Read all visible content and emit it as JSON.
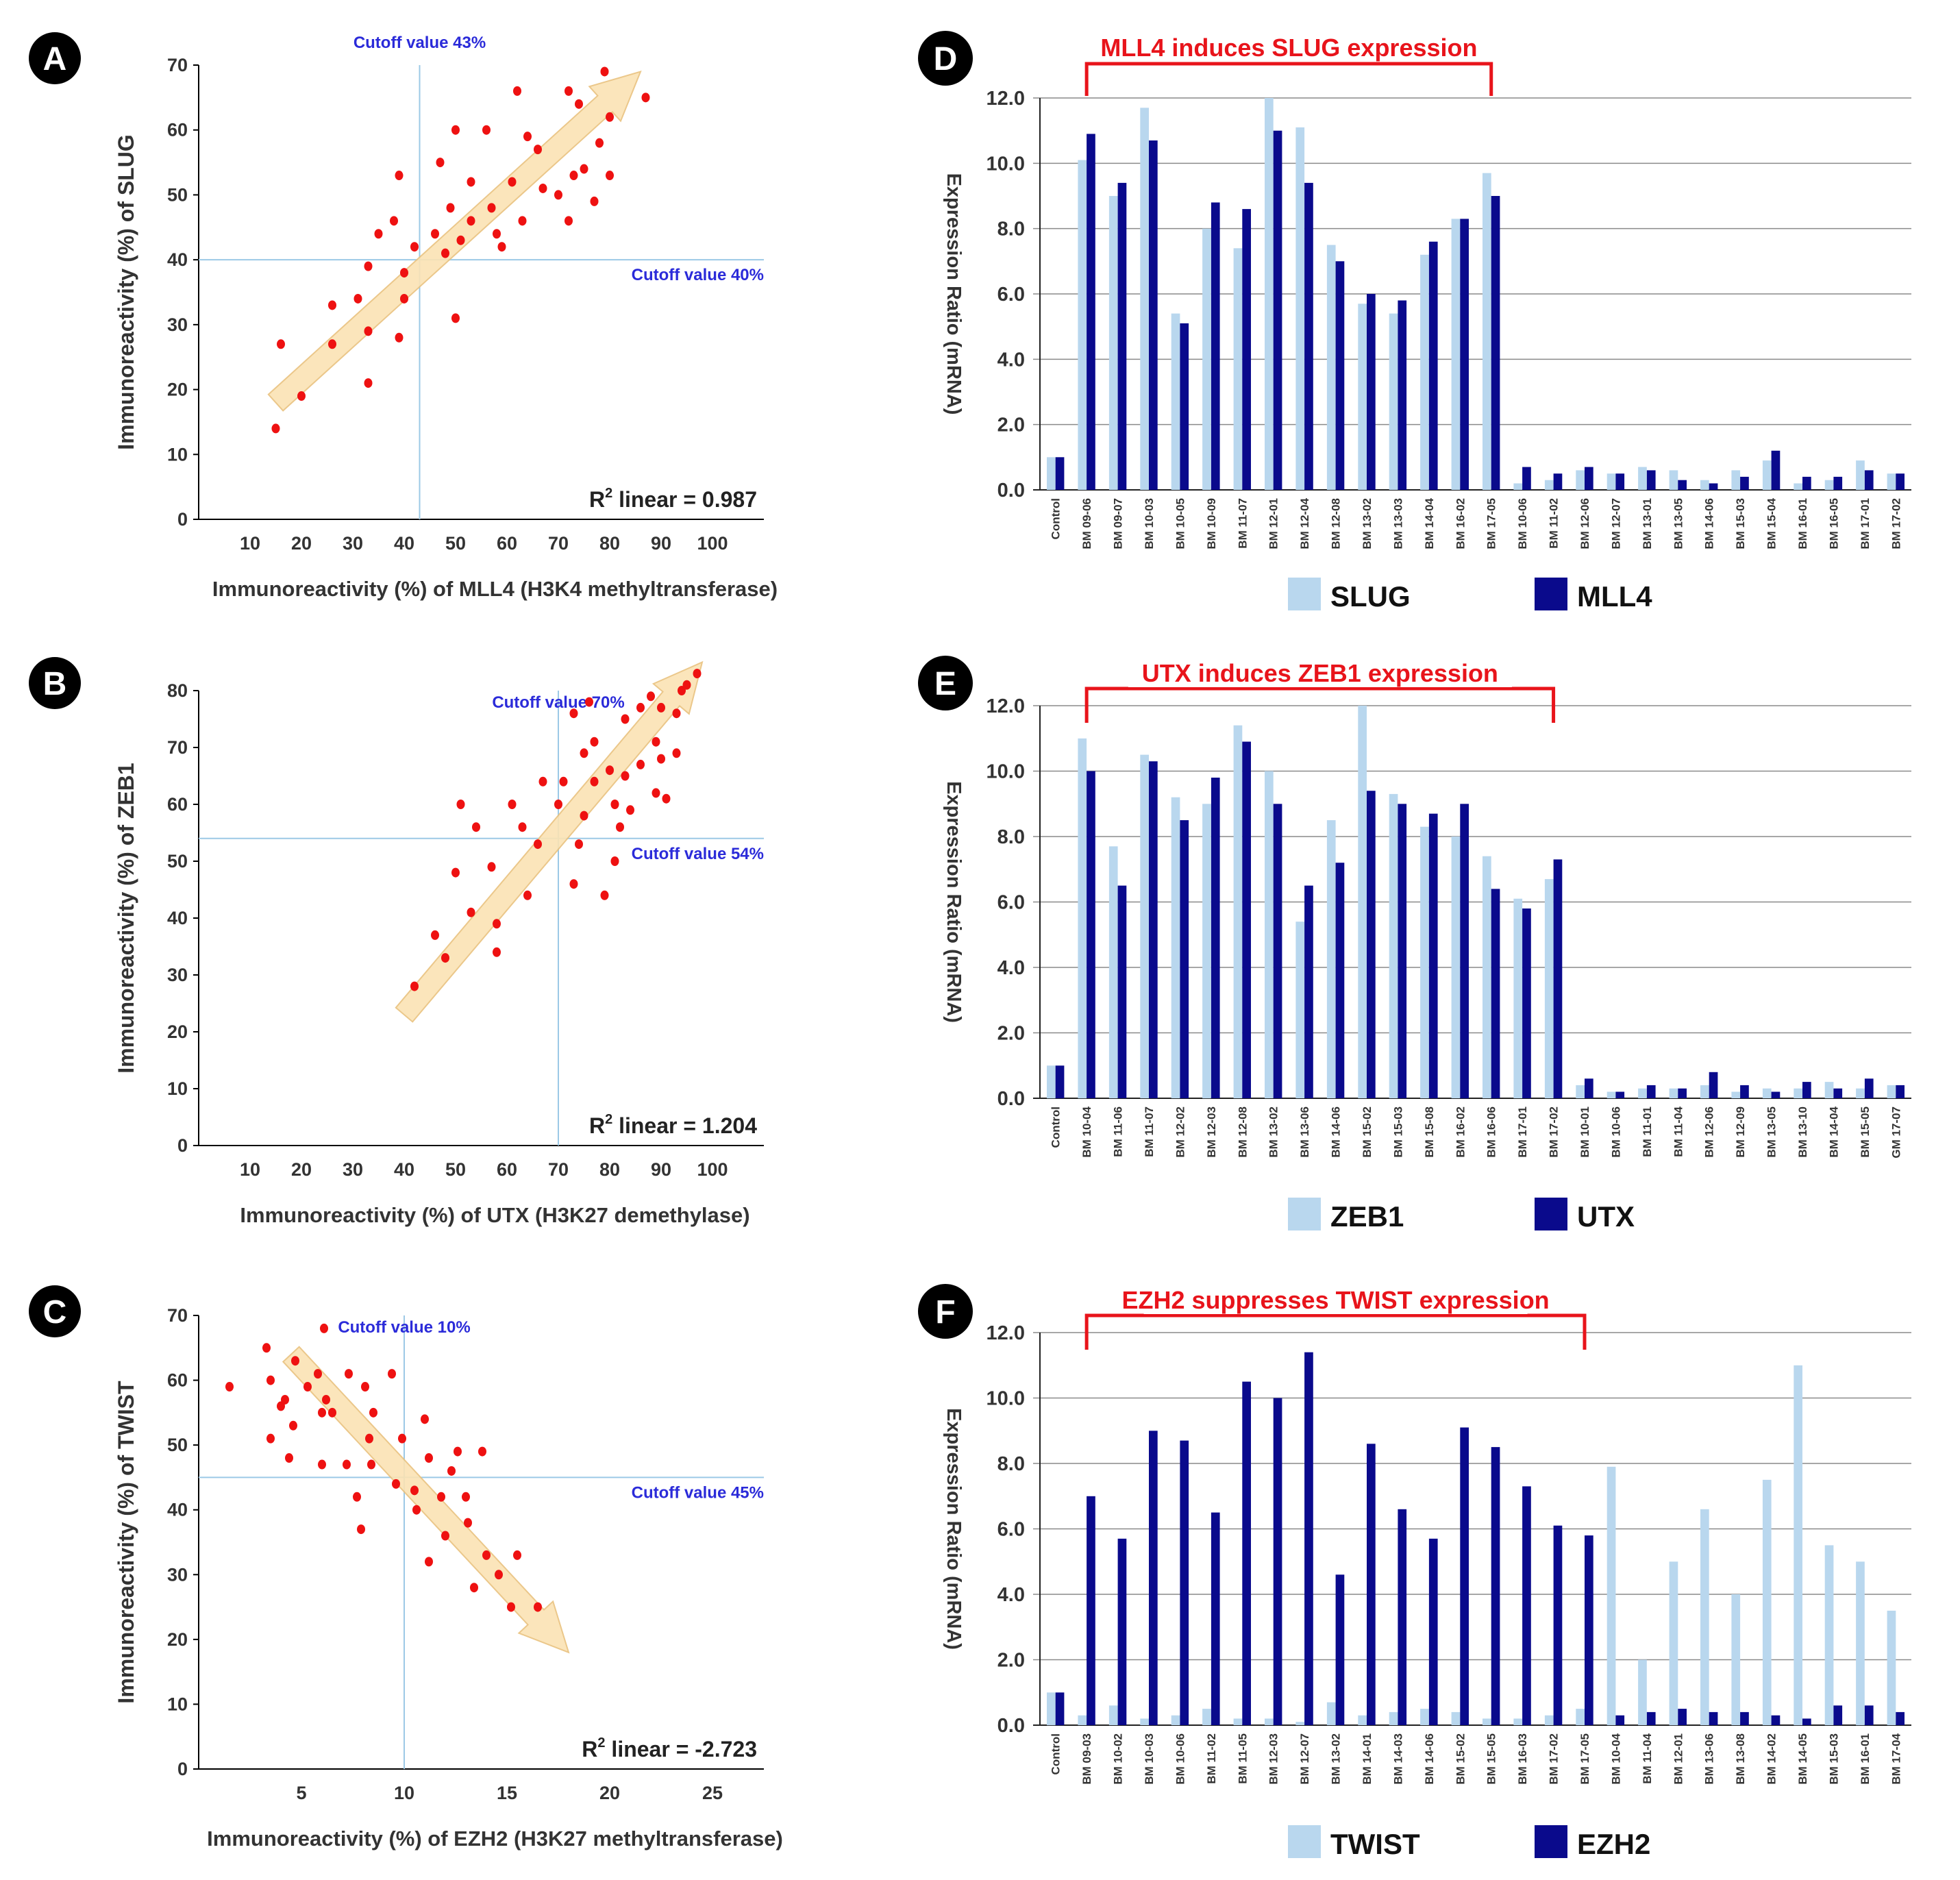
{
  "colors": {
    "point": "#ee1111",
    "arrow_fill": "#fbe3b4",
    "arrow_stroke": "#e9c27e",
    "cutoff_line": "#9cc9e6",
    "cutoff_text": "#2b2bd9",
    "bar_light": "#b9d7ee",
    "bar_dark": "#0a0a8c",
    "title_red": "#e8141b",
    "grid": "#8a8a8a"
  },
  "chart_data": [
    {
      "panel": "A",
      "type": "scatter",
      "xlabel": "Immunoreactivity (%) of MLL4 (H3K4 methyltransferase)",
      "ylabel": "Immunoreactivity (%) of SLUG",
      "x_ticks": [
        "10",
        "20",
        "30",
        "40",
        "50",
        "60",
        "70",
        "80",
        "90",
        "100"
      ],
      "y_ticks": [
        "0",
        "10",
        "20",
        "30",
        "40",
        "50",
        "60",
        "70"
      ],
      "xlim": [
        0,
        110
      ],
      "ylim": [
        0,
        70
      ],
      "cutoff_x_label": "Cutoff value 43%",
      "cutoff_x": 43,
      "cutoff_y_label": "Cutoff value 40%",
      "cutoff_y": 40,
      "r2_label": "R",
      "r2_sup": "2",
      "r2_text": " linear = 0.987",
      "arrow": {
        "from": [
          15,
          18
        ],
        "to": [
          86,
          69
        ]
      },
      "points": [
        [
          15,
          14
        ],
        [
          16,
          27
        ],
        [
          20,
          19
        ],
        [
          26,
          27
        ],
        [
          26,
          33
        ],
        [
          31,
          34
        ],
        [
          33,
          21
        ],
        [
          33,
          29
        ],
        [
          33,
          39
        ],
        [
          35,
          44
        ],
        [
          38,
          46
        ],
        [
          39,
          28
        ],
        [
          39,
          53
        ],
        [
          40,
          34
        ],
        [
          40,
          38
        ],
        [
          42,
          42
        ],
        [
          46,
          44
        ],
        [
          47,
          55
        ],
        [
          48,
          41
        ],
        [
          49,
          48
        ],
        [
          50,
          31
        ],
        [
          50,
          60
        ],
        [
          51,
          43
        ],
        [
          53,
          46
        ],
        [
          53,
          52
        ],
        [
          56,
          60
        ],
        [
          57,
          48
        ],
        [
          58,
          44
        ],
        [
          59,
          42
        ],
        [
          61,
          52
        ],
        [
          62,
          66
        ],
        [
          63,
          46
        ],
        [
          64,
          59
        ],
        [
          66,
          57
        ],
        [
          67,
          51
        ],
        [
          70,
          50
        ],
        [
          72,
          66
        ],
        [
          72,
          46
        ],
        [
          73,
          53
        ],
        [
          74,
          64
        ],
        [
          75,
          54
        ],
        [
          77,
          49
        ],
        [
          78,
          58
        ],
        [
          79,
          69
        ],
        [
          80,
          53
        ],
        [
          80,
          62
        ],
        [
          87,
          65
        ]
      ]
    },
    {
      "panel": "B",
      "type": "scatter",
      "xlabel": "Immunoreactivity (%) of UTX (H3K27 demethylase)",
      "ylabel": "Immunoreactivity (%) of ZEB1",
      "x_ticks": [
        "10",
        "20",
        "30",
        "40",
        "50",
        "60",
        "70",
        "80",
        "90",
        "100"
      ],
      "y_ticks": [
        "0",
        "10",
        "20",
        "30",
        "40",
        "50",
        "60",
        "70",
        "80"
      ],
      "xlim": [
        0,
        110
      ],
      "ylim": [
        0,
        80
      ],
      "cutoff_x_label": "Cutoff value 70%",
      "cutoff_x": 70,
      "cutoff_y_label": "Cutoff value 54%",
      "cutoff_y": 54,
      "r2_label": "R",
      "r2_sup": "2",
      "r2_text": " linear = 1.204",
      "arrow": {
        "from": [
          40,
          23
        ],
        "to": [
          98,
          85
        ]
      },
      "points": [
        [
          42,
          28
        ],
        [
          46,
          37
        ],
        [
          48,
          33
        ],
        [
          50,
          48
        ],
        [
          51,
          60
        ],
        [
          53,
          41
        ],
        [
          54,
          56
        ],
        [
          57,
          49
        ],
        [
          58,
          39
        ],
        [
          58,
          34
        ],
        [
          61,
          60
        ],
        [
          63,
          56
        ],
        [
          64,
          44
        ],
        [
          66,
          53
        ],
        [
          67,
          64
        ],
        [
          70,
          60
        ],
        [
          71,
          64
        ],
        [
          73,
          76
        ],
        [
          73,
          46
        ],
        [
          74,
          53
        ],
        [
          75,
          58
        ],
        [
          75,
          69
        ],
        [
          76,
          78
        ],
        [
          77,
          64
        ],
        [
          77,
          71
        ],
        [
          79,
          44
        ],
        [
          80,
          66
        ],
        [
          81,
          60
        ],
        [
          81,
          50
        ],
        [
          82,
          56
        ],
        [
          83,
          65
        ],
        [
          83,
          75
        ],
        [
          84,
          59
        ],
        [
          86,
          67
        ],
        [
          86,
          77
        ],
        [
          88,
          79
        ],
        [
          89,
          71
        ],
        [
          89,
          62
        ],
        [
          90,
          77
        ],
        [
          90,
          68
        ],
        [
          91,
          61
        ],
        [
          93,
          69
        ],
        [
          93,
          76
        ],
        [
          94,
          80
        ],
        [
          95,
          81
        ],
        [
          97,
          83
        ]
      ]
    },
    {
      "panel": "C",
      "type": "scatter",
      "xlabel": "Immunoreactivity (%) of EZH2 (H3K27 methyltransferase)",
      "ylabel": "Immunoreactivity (%) of TWIST",
      "x_ticks": [
        "5",
        "10",
        "15",
        "20",
        "25"
      ],
      "y_ticks": [
        "0",
        "10",
        "20",
        "30",
        "40",
        "50",
        "60",
        "70"
      ],
      "xlim": [
        0,
        27.5
      ],
      "ylim": [
        0,
        70
      ],
      "cutoff_x_label": "Cutoff value 10%",
      "cutoff_x": 10,
      "cutoff_y_label": "Cutoff value 45%",
      "cutoff_y": 45,
      "r2_label": "R",
      "r2_sup": "2",
      "r2_text": " linear = -2.723",
      "arrow": {
        "from": [
          4.5,
          64
        ],
        "to": [
          18,
          18
        ]
      },
      "points": [
        [
          1.5,
          59
        ],
        [
          3.3,
          65
        ],
        [
          3.5,
          60
        ],
        [
          3.5,
          51
        ],
        [
          4,
          56
        ],
        [
          4.2,
          57
        ],
        [
          4.4,
          48
        ],
        [
          4.6,
          53
        ],
        [
          4.7,
          63
        ],
        [
          5.3,
          59
        ],
        [
          5.8,
          61
        ],
        [
          6,
          55
        ],
        [
          6,
          47
        ],
        [
          6.1,
          68
        ],
        [
          6.2,
          57
        ],
        [
          6.5,
          55
        ],
        [
          7.2,
          47
        ],
        [
          7.3,
          61
        ],
        [
          7.7,
          42
        ],
        [
          7.9,
          37
        ],
        [
          8.1,
          59
        ],
        [
          8.3,
          51
        ],
        [
          8.4,
          47
        ],
        [
          8.5,
          55
        ],
        [
          9.4,
          61
        ],
        [
          9.6,
          44
        ],
        [
          9.9,
          51
        ],
        [
          10.5,
          43
        ],
        [
          10.6,
          40
        ],
        [
          11,
          54
        ],
        [
          11.2,
          48
        ],
        [
          11.2,
          32
        ],
        [
          11.8,
          42
        ],
        [
          12,
          36
        ],
        [
          12.3,
          46
        ],
        [
          12.6,
          49
        ],
        [
          13,
          42
        ],
        [
          13.1,
          38
        ],
        [
          13.4,
          28
        ],
        [
          13.8,
          49
        ],
        [
          14,
          33
        ],
        [
          14.6,
          30
        ],
        [
          15.2,
          25
        ],
        [
          15.5,
          33
        ],
        [
          16.5,
          25
        ]
      ]
    },
    {
      "panel": "D",
      "type": "bar",
      "title": "MLL4 induces SLUG expression",
      "ylabel": "Expression Ratio (mRNA)",
      "y_ticks": [
        "0.0",
        "2.0",
        "4.0",
        "6.0",
        "8.0",
        "10.0",
        "12.0"
      ],
      "ylim": [
        0,
        12
      ],
      "bracket_range": [
        1,
        14
      ],
      "categories": [
        "Control",
        "BM 09-06",
        "BM 09-07",
        "BM 10-03",
        "BM 10-05",
        "BM 10-09",
        "BM 11-07",
        "BM 12-01",
        "BM 12-04",
        "BM 12-08",
        "BM 13-02",
        "BM 13-03",
        "BM 14-04",
        "BM 16-02",
        "BM 17-05",
        "BM 10-06",
        "BM 11-02",
        "BM 12-06",
        "BM 12-07",
        "BM 13-01",
        "BM 13-05",
        "BM 14-06",
        "BM 15-03",
        "BM 15-04",
        "BM 16-01",
        "BM 16-05",
        "BM 17-01",
        "BM 17-02"
      ],
      "series": [
        {
          "name": "SLUG",
          "values": [
            1.0,
            10.1,
            9.0,
            11.7,
            5.4,
            8.0,
            7.4,
            12.0,
            11.1,
            7.5,
            5.7,
            5.4,
            7.2,
            8.3,
            9.7,
            0.2,
            0.3,
            0.6,
            0.5,
            0.7,
            0.6,
            0.3,
            0.6,
            0.9,
            0.2,
            0.3,
            0.9,
            0.5
          ]
        },
        {
          "name": "MLL4",
          "values": [
            1.0,
            10.9,
            9.4,
            10.7,
            5.1,
            8.8,
            8.6,
            11.0,
            9.4,
            7.0,
            6.0,
            5.8,
            7.6,
            8.3,
            9.0,
            0.7,
            0.5,
            0.7,
            0.5,
            0.6,
            0.3,
            0.2,
            0.4,
            1.2,
            0.4,
            0.4,
            0.6,
            0.5
          ]
        }
      ]
    },
    {
      "panel": "E",
      "type": "bar",
      "title": "UTX induces ZEB1 expression",
      "ylabel": "Expression Ratio (mRNA)",
      "y_ticks": [
        "0.0",
        "2.0",
        "4.0",
        "6.0",
        "8.0",
        "10.0",
        "12.0"
      ],
      "ylim": [
        0,
        12
      ],
      "bracket_range": [
        1,
        16
      ],
      "categories": [
        "Control",
        "BM 10-04",
        "BM 11-06",
        "BM 11-07",
        "BM 12-02",
        "BM 12-03",
        "BM 12-08",
        "BM 13-02",
        "BM 13-06",
        "BM 14-06",
        "BM 15-02",
        "BM 15-03",
        "BM 15-08",
        "BM 16-02",
        "BM 16-06",
        "BM 17-01",
        "BM 17-02",
        "BM 10-01",
        "BM 10-06",
        "BM 11-01",
        "BM 11-04",
        "BM 12-06",
        "BM 12-09",
        "BM 13-05",
        "BM 13-10",
        "BM 14-04",
        "BM 15-05",
        "GM 17-07"
      ],
      "series": [
        {
          "name": "ZEB1",
          "values": [
            1.0,
            11.0,
            7.7,
            10.5,
            9.2,
            9.0,
            11.4,
            10.0,
            5.4,
            8.5,
            12.0,
            9.3,
            8.3,
            8.0,
            7.4,
            6.1,
            6.7,
            0.4,
            0.2,
            0.3,
            0.3,
            0.4,
            0.2,
            0.3,
            0.3,
            0.5,
            0.3,
            0.4
          ]
        },
        {
          "name": "UTX",
          "values": [
            1.0,
            10.0,
            6.5,
            10.3,
            8.5,
            9.8,
            10.9,
            9.0,
            6.5,
            7.2,
            9.4,
            9.0,
            8.7,
            9.0,
            6.4,
            5.8,
            7.3,
            0.6,
            0.2,
            0.4,
            0.3,
            0.8,
            0.4,
            0.2,
            0.5,
            0.3,
            0.6,
            0.4
          ]
        }
      ]
    },
    {
      "panel": "F",
      "type": "bar",
      "title": "EZH2 suppresses TWIST expression",
      "ylabel": "Expression Ratio (mRNA)",
      "y_ticks": [
        "0.0",
        "2.0",
        "4.0",
        "6.0",
        "8.0",
        "10.0",
        "12.0"
      ],
      "ylim": [
        0,
        12
      ],
      "bracket_range": [
        1,
        17
      ],
      "categories": [
        "Control",
        "BM 09-03",
        "BM 10-02",
        "BM 10-03",
        "BM 10-06",
        "BM 11-02",
        "BM 11-05",
        "BM 12-03",
        "BM 12-07",
        "BM 13-02",
        "BM 14-01",
        "BM 14-03",
        "BM 14-06",
        "BM 15-02",
        "BM 15-05",
        "BM 16-03",
        "BM 17-02",
        "BM 17-05",
        "BM 10-04",
        "BM 11-04",
        "BM 12-01",
        "BM 13-06",
        "BM 13-08",
        "BM 14-02",
        "BM 14-05",
        "BM 15-03",
        "BM 16-01",
        "BM 17-04"
      ],
      "series": [
        {
          "name": "TWIST",
          "values": [
            1.0,
            0.3,
            0.6,
            0.2,
            0.3,
            0.5,
            0.2,
            0.2,
            0.1,
            0.7,
            0.3,
            0.4,
            0.5,
            0.4,
            0.2,
            0.2,
            0.3,
            0.5,
            7.9,
            2.0,
            5.0,
            6.6,
            4.0,
            7.5,
            11.0,
            5.5,
            5.0,
            3.5
          ]
        },
        {
          "name": "EZH2",
          "values": [
            1.0,
            7.0,
            5.7,
            9.0,
            8.7,
            6.5,
            10.5,
            10.0,
            11.4,
            4.6,
            8.6,
            6.6,
            5.7,
            9.1,
            8.5,
            7.3,
            6.1,
            5.8,
            0.3,
            0.4,
            0.5,
            0.4,
            0.4,
            0.3,
            0.2,
            0.6,
            0.6,
            0.4
          ]
        }
      ]
    }
  ]
}
